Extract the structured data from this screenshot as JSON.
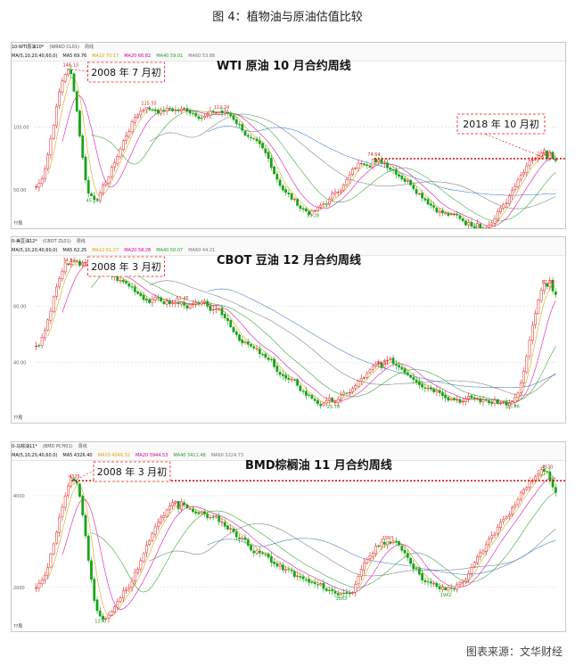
{
  "figure_title": "图 4：植物油与原油估值比较",
  "source": "图表来源：文华财经",
  "chart_data": [
    {
      "type": "candlestick",
      "title": "WTI 原油 10 月合约周线",
      "header_label": "10-WTI原油10*",
      "header_sub": "(WRKD CL01)",
      "header_period": "周线",
      "ma_legend_label": "MA(5,10,20,40,60,0)",
      "ma_values": {
        "MA5": "MA5 69.76",
        "MA10": "MA10 70.17",
        "MA20": "MA20 66.82",
        "MA40": "MA40 59.01",
        "MA60": "MA60 53.88"
      },
      "ylim": [
        25,
        150
      ],
      "ytick_labels": [
        "100.00",
        "50.00"
      ],
      "ytick_values": [
        100,
        50
      ],
      "period_label": "??周",
      "annotations": [
        {
          "label": "146.13",
          "value": 146.13,
          "x": 0.06,
          "kind": "high"
        },
        {
          "label": "115.55",
          "value": 115.55,
          "x": 0.21,
          "kind": "high"
        },
        {
          "label": "112.24",
          "value": 112.24,
          "x": 0.35,
          "kind": "high"
        },
        {
          "label": "74.64",
          "value": 74.64,
          "x": 0.65,
          "kind": "high"
        },
        {
          "label": "74.77",
          "value": 74.77,
          "x": 0.985,
          "kind": "high"
        },
        {
          "label": "45.13",
          "value": 45.13,
          "x": 0.105,
          "kind": "low"
        },
        {
          "label": "33.28",
          "value": 33.28,
          "x": 0.53,
          "kind": "low"
        },
        {
          "label": "23.26",
          "value": 23.26,
          "x": 0.85,
          "kind": "low"
        }
      ],
      "callouts": [
        {
          "text": "2008 年 7 月初",
          "anchor": 0.06
        },
        {
          "text": "2018 年 10 月初",
          "anchor": 0.985
        }
      ],
      "reference_line": {
        "value": 74.77,
        "from": 0.65
      }
    },
    {
      "type": "candlestick",
      "title": "CBOT 豆油 12 月合约周线",
      "header_label": "0-美豆油12*",
      "header_sub": "(CBOT ZL01)",
      "header_period": "周线",
      "ma_legend_label": "MA(5,10,20,40,60,0)",
      "ma_values": {
        "MA5": "MA5 62.25",
        "MA10": "MA10 61.27",
        "MA20": "MA20 58.28",
        "MA40": "MA40 50.07",
        "MA60": "MA60 44.21"
      },
      "ylim": [
        21,
        77
      ],
      "ytick_labels": [
        "60.00",
        "40.00"
      ],
      "ytick_values": [
        60,
        40
      ],
      "period_label": "??周",
      "annotations": [
        {
          "label": "74.93",
          "value": 74.93,
          "x": 0.06,
          "kind": "high"
        },
        {
          "label": "61.45",
          "value": 61.45,
          "x": 0.28,
          "kind": "high"
        },
        {
          "label": "38.11",
          "value": 38.11,
          "x": 0.665,
          "kind": "high"
        },
        {
          "label": "67.08",
          "value": 67.08,
          "x": 0.985,
          "kind": "high"
        },
        {
          "label": "25.78",
          "value": 25.78,
          "x": 0.57,
          "kind": "low"
        },
        {
          "label": "25.86",
          "value": 25.86,
          "x": 0.915,
          "kind": "low"
        }
      ],
      "callouts": [
        {
          "text": "2008 年 3 月初",
          "anchor": 0.06
        }
      ]
    },
    {
      "type": "candlestick",
      "title": "BMD棕榈油 11 月合约周线",
      "header_label": "0-马棕油11*",
      "header_sub": "(BMD PCH01)",
      "header_period": "周线",
      "ma_legend_label": "MA(5,10,20,40,60,0)",
      "ma_values": {
        "MA5": "MA5 4326.40",
        "MA10": "MA10 4046.32",
        "MA20": "MA20 3944.53",
        "MA40": "MA40 3411.48",
        "MA60": "MA60 3224.73"
      },
      "ylim": [
        1200,
        4700
      ],
      "ytick_labels": [
        "4000",
        "2000"
      ],
      "ytick_values": [
        4000,
        2000
      ],
      "period_label": "??周",
      "annotations": [
        {
          "label": "4326",
          "value": 4326,
          "x": 0.07,
          "kind": "high"
        },
        {
          "label": "3714",
          "value": 3714,
          "x": 0.275,
          "kind": "high"
        },
        {
          "label": "2993",
          "value": 2993,
          "x": 0.675,
          "kind": "high"
        },
        {
          "label": "4530",
          "value": 4530,
          "x": 0.985,
          "kind": "high"
        },
        {
          "label": "1370",
          "value": 1370,
          "x": 0.125,
          "kind": "low"
        },
        {
          "label": "1863",
          "value": 1863,
          "x": 0.585,
          "kind": "low"
        },
        {
          "label": "1942",
          "value": 1942,
          "x": 0.79,
          "kind": "low"
        }
      ],
      "callouts": [
        {
          "text": "2008 年 3 月初",
          "anchor": 0.07
        }
      ],
      "reference_line": {
        "value": 4326,
        "from": 0.07
      }
    }
  ],
  "colors": {
    "up": "#e02020",
    "down": "#18a318",
    "ma5": "#d4a000",
    "ma10": "#d0009e",
    "ma20": "#2a9d2a",
    "ma40": "#777777",
    "ma60": "#3a77c4",
    "reference": "#dd1111"
  }
}
